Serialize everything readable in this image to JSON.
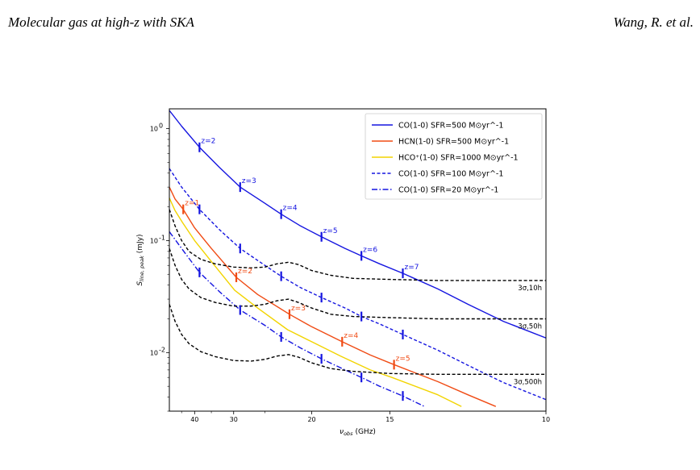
{
  "header": {
    "left": "Molecular gas at high-z with SKA",
    "right": "Wang, R. et al."
  },
  "chart_data": {
    "type": "line",
    "xlabel": "ν_obs (GHz)",
    "ylabel": "S_line, peak (mJy)",
    "xscale": "reciprocal",
    "yscale": "log",
    "xlim": [
      51,
      10
    ],
    "ylim": [
      0.003,
      1.5
    ],
    "xticks": [
      40,
      30,
      20,
      15,
      10
    ],
    "yticks": [
      {
        "value": 0.01,
        "label": "10^-2"
      },
      {
        "value": 0.1,
        "label": "10^-1"
      },
      {
        "value": 1,
        "label": "10^0"
      }
    ],
    "legend_position": "top-right",
    "colors": {
      "blue": "#1515e0",
      "red": "#f04b14",
      "gold": "#f2d400",
      "black": "#000000"
    },
    "series": [
      {
        "name": "CO(1-0) SFR=500 M⊙yr^-1",
        "color": "#1515e0",
        "style": "solid",
        "x": [
          51,
          45,
          38.4,
          33,
          28.8,
          25,
          23.0,
          21,
          19.2,
          17.5,
          16.5,
          15.5,
          14.4,
          13,
          12,
          11,
          10
        ],
        "y": [
          1.45,
          1.05,
          0.68,
          0.45,
          0.3,
          0.215,
          0.172,
          0.135,
          0.108,
          0.085,
          0.073,
          0.062,
          0.051,
          0.037,
          0.027,
          0.019,
          0.0135
        ],
        "markers": [
          {
            "x": 38.4,
            "y": 0.68,
            "label": "z=2"
          },
          {
            "x": 28.8,
            "y": 0.3,
            "label": "z=3"
          },
          {
            "x": 23.0,
            "y": 0.172,
            "label": "z=4"
          },
          {
            "x": 19.2,
            "y": 0.108,
            "label": "z=5"
          },
          {
            "x": 16.5,
            "y": 0.073,
            "label": "z=6"
          },
          {
            "x": 14.4,
            "y": 0.051,
            "label": "z=7"
          }
        ]
      },
      {
        "name": "HCN(1-0) SFR=500 M⊙yr^-1",
        "color": "#f04b14",
        "style": "solid",
        "x": [
          51,
          48,
          44.3,
          40,
          35,
          29.5,
          26,
          22.1,
          20,
          17.7,
          16,
          14.8,
          13,
          12,
          11.2
        ],
        "y": [
          0.3,
          0.235,
          0.19,
          0.13,
          0.085,
          0.047,
          0.033,
          0.022,
          0.017,
          0.0125,
          0.0095,
          0.0078,
          0.0055,
          0.0042,
          0.0033
        ],
        "markers": [
          {
            "x": 44.3,
            "y": 0.19,
            "label": "z=1"
          },
          {
            "x": 29.5,
            "y": 0.047,
            "label": "z=2"
          },
          {
            "x": 22.1,
            "y": 0.022,
            "label": "z=3"
          },
          {
            "x": 17.7,
            "y": 0.0125,
            "label": "z=4"
          },
          {
            "x": 14.8,
            "y": 0.0078,
            "label": "z=5"
          }
        ]
      },
      {
        "name": "HCO⁺(1-0) SFR=1000 M⊙yr^-1",
        "color": "#f2d400",
        "style": "solid",
        "x": [
          51,
          48,
          44.6,
          40,
          35,
          29.8,
          26,
          22.3,
          20,
          17.8,
          16,
          14.9,
          13,
          12.2
        ],
        "y": [
          0.24,
          0.185,
          0.145,
          0.1,
          0.065,
          0.036,
          0.025,
          0.016,
          0.0125,
          0.0093,
          0.007,
          0.006,
          0.0042,
          0.0033
        ]
      },
      {
        "name": "CO(1-0) SFR=100 M⊙yr^-1",
        "color": "#1515e0",
        "style": "dashed",
        "x": [
          51,
          45,
          38.4,
          33,
          28.8,
          25,
          23.0,
          21,
          19.2,
          17.5,
          16.5,
          15.5,
          14.4,
          13,
          12,
          11,
          10
        ],
        "y": [
          0.44,
          0.3,
          0.19,
          0.125,
          0.085,
          0.06,
          0.048,
          0.038,
          0.031,
          0.025,
          0.021,
          0.018,
          0.0145,
          0.0105,
          0.0077,
          0.0054,
          0.0038
        ]
      },
      {
        "name": "CO(1-0) SFR=20 M⊙yr^-1",
        "color": "#1515e0",
        "style": "dashdot",
        "x": [
          51,
          45,
          38.4,
          33,
          28.8,
          25,
          23.0,
          21,
          19.2,
          17.5,
          16.5,
          15.5,
          14.4,
          13.5
        ],
        "y": [
          0.12,
          0.085,
          0.052,
          0.035,
          0.024,
          0.0175,
          0.0138,
          0.011,
          0.0088,
          0.007,
          0.006,
          0.005,
          0.0041,
          0.0033
        ]
      },
      {
        "name": "",
        "color": "#000000",
        "style": "dashed",
        "x": [
          51,
          48,
          45,
          42,
          38,
          34,
          30,
          27,
          25,
          23.5,
          22.2,
          21.2,
          20,
          18.5,
          17,
          15,
          13,
          11,
          10
        ],
        "y": [
          0.19,
          0.135,
          0.1,
          0.08,
          0.068,
          0.062,
          0.058,
          0.057,
          0.058,
          0.062,
          0.064,
          0.061,
          0.054,
          0.049,
          0.046,
          0.045,
          0.044,
          0.044,
          0.044
        ]
      },
      {
        "name": "",
        "color": "#000000",
        "style": "dashed",
        "x": [
          51,
          48,
          45,
          42,
          38,
          34,
          30,
          27,
          25,
          23.5,
          22.2,
          21.2,
          20,
          18.5,
          17,
          15,
          13,
          11,
          10
        ],
        "y": [
          0.085,
          0.06,
          0.045,
          0.037,
          0.031,
          0.028,
          0.026,
          0.026,
          0.027,
          0.029,
          0.03,
          0.028,
          0.025,
          0.022,
          0.021,
          0.0205,
          0.02,
          0.02,
          0.02
        ]
      },
      {
        "name": "",
        "color": "#000000",
        "style": "dashed",
        "x": [
          51,
          48,
          45,
          42,
          38,
          34,
          30,
          27,
          25,
          23.5,
          22.2,
          21.2,
          20,
          18.5,
          17,
          15,
          13,
          11,
          10
        ],
        "y": [
          0.027,
          0.019,
          0.0145,
          0.012,
          0.0102,
          0.0092,
          0.0085,
          0.0084,
          0.0087,
          0.0093,
          0.0096,
          0.0091,
          0.0081,
          0.0072,
          0.0068,
          0.0065,
          0.0064,
          0.0064,
          0.0064
        ]
      }
    ],
    "noise_labels": [
      "3σ,10h",
      "3σ,50h",
      "3σ,500h"
    ]
  }
}
